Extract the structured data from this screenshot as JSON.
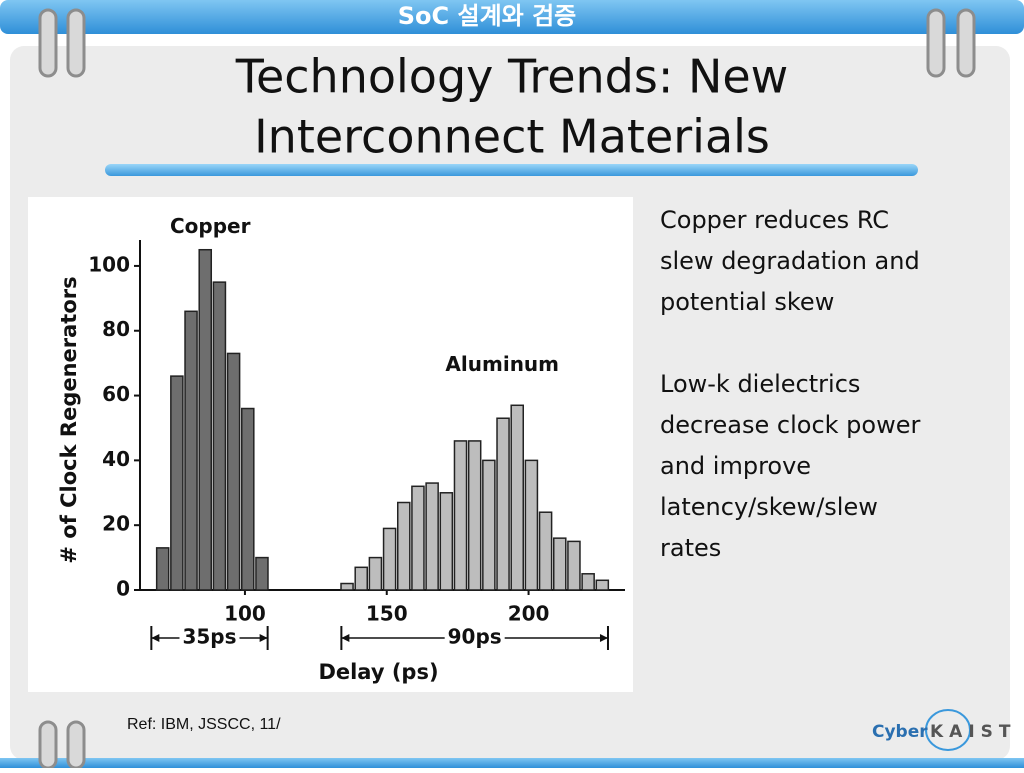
{
  "header": "SoC 설계와 검증",
  "title": [
    "Technology Trends: New",
    "Interconnect Materials"
  ],
  "bullets": [
    [
      "Copper reduces RC",
      "slew degradation and",
      "potential skew"
    ],
    [
      "Low-k dielectrics",
      "decrease clock power",
      "and improve",
      "latency/skew/slew",
      "rates"
    ]
  ],
  "reference": "Ref: IBM, JSSCC, 11/",
  "logo": [
    "Cyber",
    "KAIST"
  ],
  "chart_data": {
    "type": "bar",
    "x_label": "Delay (ps)",
    "y_label": "# of Clock Regenerators",
    "series": [
      {
        "name": "Copper",
        "color": "#6e6e6e",
        "x": [
          71,
          76,
          81,
          86,
          91,
          96,
          101,
          106
        ],
        "values": [
          13,
          66,
          86,
          105,
          95,
          73,
          56,
          10
        ]
      },
      {
        "name": "Aluminum",
        "color": "#bdbdbd",
        "x": [
          136,
          141,
          146,
          151,
          156,
          161,
          166,
          171,
          176,
          181,
          186,
          191,
          196,
          201,
          206,
          211,
          216,
          221,
          226
        ],
        "values": [
          2,
          7,
          10,
          19,
          27,
          32,
          33,
          30,
          46,
          46,
          40,
          53,
          57,
          40,
          24,
          16,
          15,
          5,
          3
        ]
      }
    ],
    "annotations": [
      {
        "text": "35ps",
        "x": [
          67,
          108
        ]
      },
      {
        "text": "90ps",
        "x": [
          134,
          228
        ]
      }
    ],
    "xlim": [
      63,
      234
    ],
    "ylim": [
      0,
      108
    ],
    "xticks": [
      100,
      150,
      200
    ],
    "yticks": [
      0,
      20,
      40,
      60,
      80,
      100
    ]
  }
}
